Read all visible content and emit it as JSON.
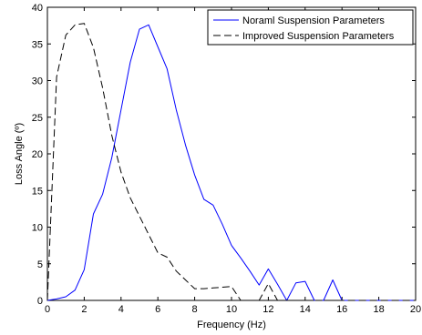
{
  "chart_data": {
    "type": "line",
    "title": "",
    "xlabel": "Frequency (Hz)",
    "ylabel": "Loss Angle (º)",
    "xlim": [
      0,
      20
    ],
    "ylim": [
      0,
      40
    ],
    "xticks": [
      0,
      2,
      4,
      6,
      8,
      10,
      12,
      14,
      16,
      18,
      20
    ],
    "yticks": [
      0,
      5,
      10,
      15,
      20,
      25,
      30,
      35,
      40
    ],
    "grid": false,
    "legend_position": "top-right",
    "series": [
      {
        "name": "Noraml Suspension Parameters",
        "color": "#0000ff",
        "style": "solid",
        "x": [
          0,
          0.5,
          1,
          1.5,
          2,
          2.5,
          3,
          3.5,
          4,
          4.5,
          5,
          5.5,
          6,
          6.5,
          7,
          7.5,
          8,
          8.5,
          9,
          9.5,
          10,
          10.5,
          11,
          11.5,
          12,
          12.5,
          13,
          13.5,
          14,
          14.5,
          15,
          15.5,
          16,
          16.5,
          17,
          17.5,
          18,
          18.5,
          19,
          19.5,
          20
        ],
        "y": [
          0,
          0.2,
          0.5,
          1.4,
          4.2,
          11.8,
          14.5,
          19.5,
          26,
          32.5,
          37,
          37.6,
          34.6,
          31.6,
          26,
          21.2,
          17.1,
          13.8,
          13,
          10.4,
          7.5,
          5.8,
          4,
          2.1,
          4.3,
          2.2,
          0,
          2.4,
          2.6,
          0,
          0,
          2.8,
          0,
          0,
          0,
          0,
          0,
          0,
          0,
          0,
          0
        ]
      },
      {
        "name": "Improved Suspension Parameters",
        "color": "#000000",
        "style": "dashed",
        "x": [
          0,
          0.5,
          1,
          1.5,
          2,
          2.5,
          3,
          3.5,
          4,
          4.5,
          5,
          5.5,
          6,
          6.5,
          7,
          7.5,
          8,
          8.5,
          9,
          9.5,
          10,
          10.5,
          11,
          11.5,
          12,
          12.5,
          13,
          13.5,
          14,
          14.5,
          15,
          15.5,
          16,
          16.5,
          17,
          17.5,
          18,
          18.5,
          19,
          19.5,
          20
        ],
        "y": [
          0,
          30.5,
          36.2,
          37.6,
          37.8,
          34.5,
          29,
          22.5,
          17.5,
          14,
          11.5,
          9,
          6.5,
          5.9,
          4,
          2.8,
          1.6,
          1.6,
          1.7,
          1.8,
          1.9,
          0,
          0,
          0,
          2.3,
          0,
          0,
          0,
          0,
          0,
          0,
          0,
          0,
          0,
          0,
          0,
          0,
          0,
          0,
          0,
          0
        ]
      }
    ]
  }
}
